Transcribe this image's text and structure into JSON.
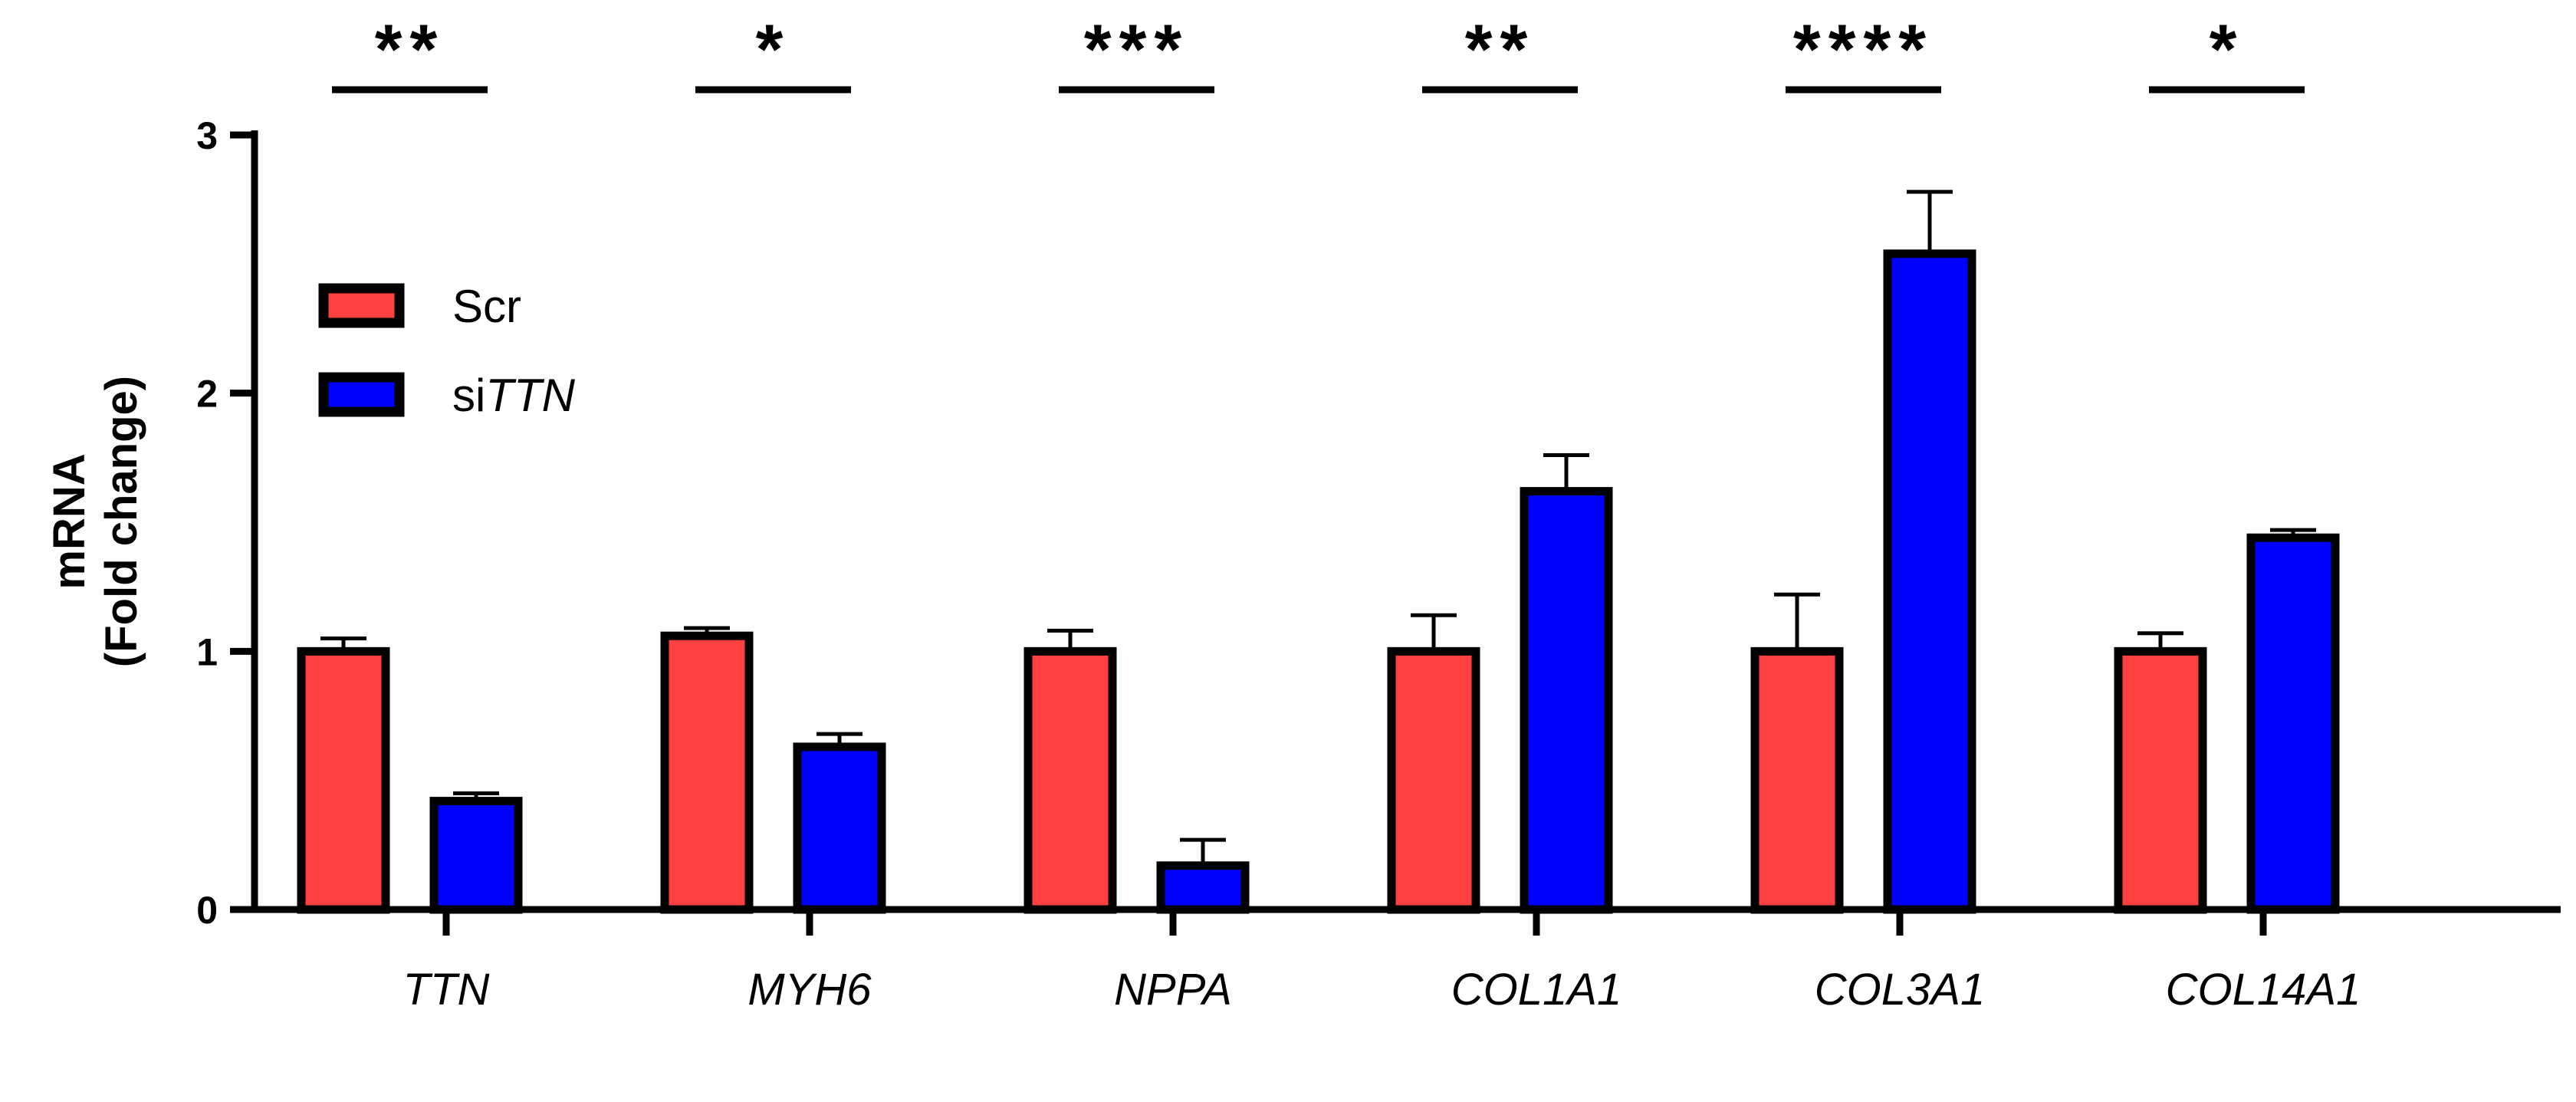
{
  "chart_data": {
    "type": "bar",
    "title": "",
    "xlabel": "",
    "ylabel_line1": "mRNA",
    "ylabel_line2": "(Fold change)",
    "ylim": [
      0,
      3
    ],
    "yticks": [
      0,
      1,
      2,
      3
    ],
    "categories": [
      "TTN",
      "MYH6",
      "NPPA",
      "COL1A1",
      "COL3A1",
      "COL14A1"
    ],
    "series": [
      {
        "name": "Scr",
        "color": "#ff4040",
        "values": [
          1.0,
          1.06,
          1.0,
          1.0,
          1.0,
          1.0
        ],
        "errors": [
          0.05,
          0.03,
          0.08,
          0.14,
          0.22,
          0.07
        ]
      },
      {
        "name_prefix": "si",
        "name_italic": "TTN",
        "color": "#0000ff",
        "values": [
          0.42,
          0.63,
          0.17,
          1.62,
          2.54,
          1.44
        ],
        "errors": [
          0.03,
          0.05,
          0.1,
          0.14,
          0.24,
          0.03
        ]
      }
    ],
    "significance": [
      "**",
      "*",
      "***",
      "**",
      "****",
      "*"
    ],
    "legend_position": "top-left",
    "grid": false,
    "error_bars": "upper only"
  }
}
